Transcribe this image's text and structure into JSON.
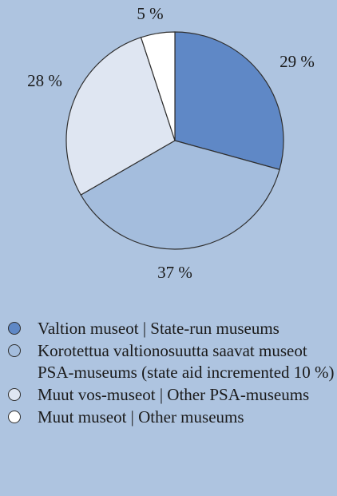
{
  "chart_data": {
    "type": "pie",
    "slices": [
      {
        "label": "29 %",
        "value": 29,
        "color": "#5f88c6",
        "legend": "Valtion museot | State-run museums"
      },
      {
        "label": "37 %",
        "value": 37,
        "color": "#a4bddd",
        "legend": "Korotettua valtionosuutta saavat museot PSA-museums (state aid incremented 10 %)"
      },
      {
        "label": "28 %",
        "value": 28,
        "color": "#dfe6f2",
        "legend": "Muut vos-museot | Other PSA-museums"
      },
      {
        "label": "5 %",
        "value": 5,
        "color": "#ffffff",
        "legend": "Muut museot | Other museums"
      }
    ],
    "start": "12 o'clock",
    "direction": "clockwise",
    "legend_position": "bottom"
  }
}
